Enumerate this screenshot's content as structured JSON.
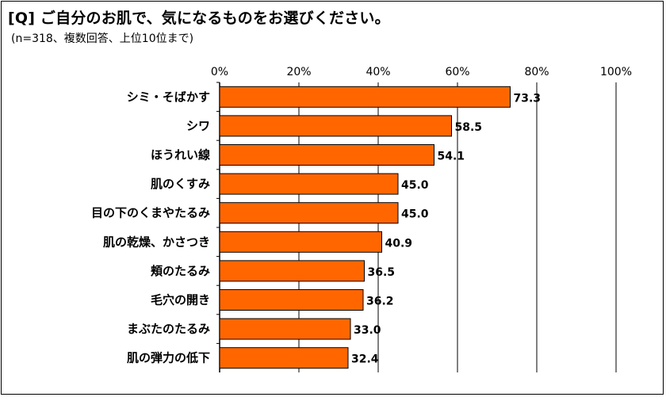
{
  "header": {
    "title": "[Q] ご自分のお肌で、気になるものをお選びください。",
    "subtitle": "(n=318、複数回答、上位10位まで)"
  },
  "colors": {
    "bar_fill": "#FF6600",
    "bar_stroke": "#000000",
    "grid": "#000000"
  },
  "chart_data": {
    "type": "bar",
    "orientation": "horizontal",
    "categories": [
      "シミ・そばかす",
      "シワ",
      "ほうれい線",
      "肌のくすみ",
      "目の下のくまやたるみ",
      "肌の乾燥、かさつき",
      "頬のたるみ",
      "毛穴の開き",
      "まぶたのたるみ",
      "肌の弾力の低下"
    ],
    "values": [
      73.3,
      58.5,
      54.1,
      45.0,
      45.0,
      40.9,
      36.5,
      36.2,
      33.0,
      32.4
    ],
    "value_labels": [
      "73.3",
      "58.5",
      "54.1",
      "45.0",
      "45.0",
      "40.9",
      "36.5",
      "36.2",
      "33.0",
      "32.4"
    ],
    "xlim": [
      0,
      100
    ],
    "ticks": [
      0,
      20,
      40,
      60,
      80,
      100
    ],
    "tick_labels": [
      "0%",
      "20%",
      "40%",
      "60%",
      "80%",
      "100%"
    ],
    "grid": true
  }
}
